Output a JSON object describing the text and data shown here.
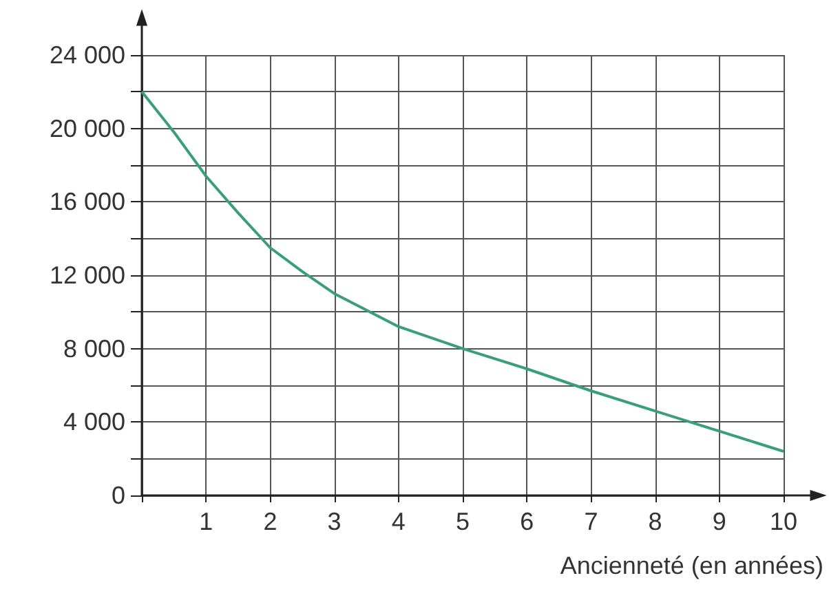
{
  "chart_data": {
    "type": "line",
    "xlabel": "Ancienneté (en années)",
    "x": [
      0,
      0.5,
      1,
      1.5,
      2,
      2.5,
      3,
      4,
      5,
      6,
      7,
      8,
      9,
      10
    ],
    "series": [
      {
        "color": "#3a9e7e",
        "values": [
          22000,
          19800,
          17400,
          15400,
          13500,
          12200,
          11000,
          9200,
          8000,
          6900,
          5700,
          4600,
          3500,
          2400
        ]
      }
    ],
    "xlim": [
      0,
      10
    ],
    "ylim": [
      0,
      24000
    ],
    "xticks": [
      {
        "value": 0,
        "label": null
      },
      1,
      2,
      3,
      4,
      5,
      6,
      7,
      8,
      9,
      10
    ],
    "yticks": [
      {
        "value": 0,
        "label": "0"
      },
      {
        "value": 2000,
        "label": null
      },
      {
        "value": 4000,
        "label": "4 000"
      },
      {
        "value": 6000,
        "label": null
      },
      {
        "value": 8000,
        "label": "8 000"
      },
      {
        "value": 10000,
        "label": null
      },
      {
        "value": 12000,
        "label": "12 000"
      },
      {
        "value": 14000,
        "label": null
      },
      {
        "value": 16000,
        "label": "16 000"
      },
      {
        "value": 18000,
        "label": null
      },
      {
        "value": 20000,
        "label": "20 000"
      },
      {
        "value": 22000,
        "label": null
      },
      {
        "value": 24000,
        "label": "24 000"
      }
    ],
    "grid": true,
    "marker": "none",
    "line_style": "solid"
  }
}
